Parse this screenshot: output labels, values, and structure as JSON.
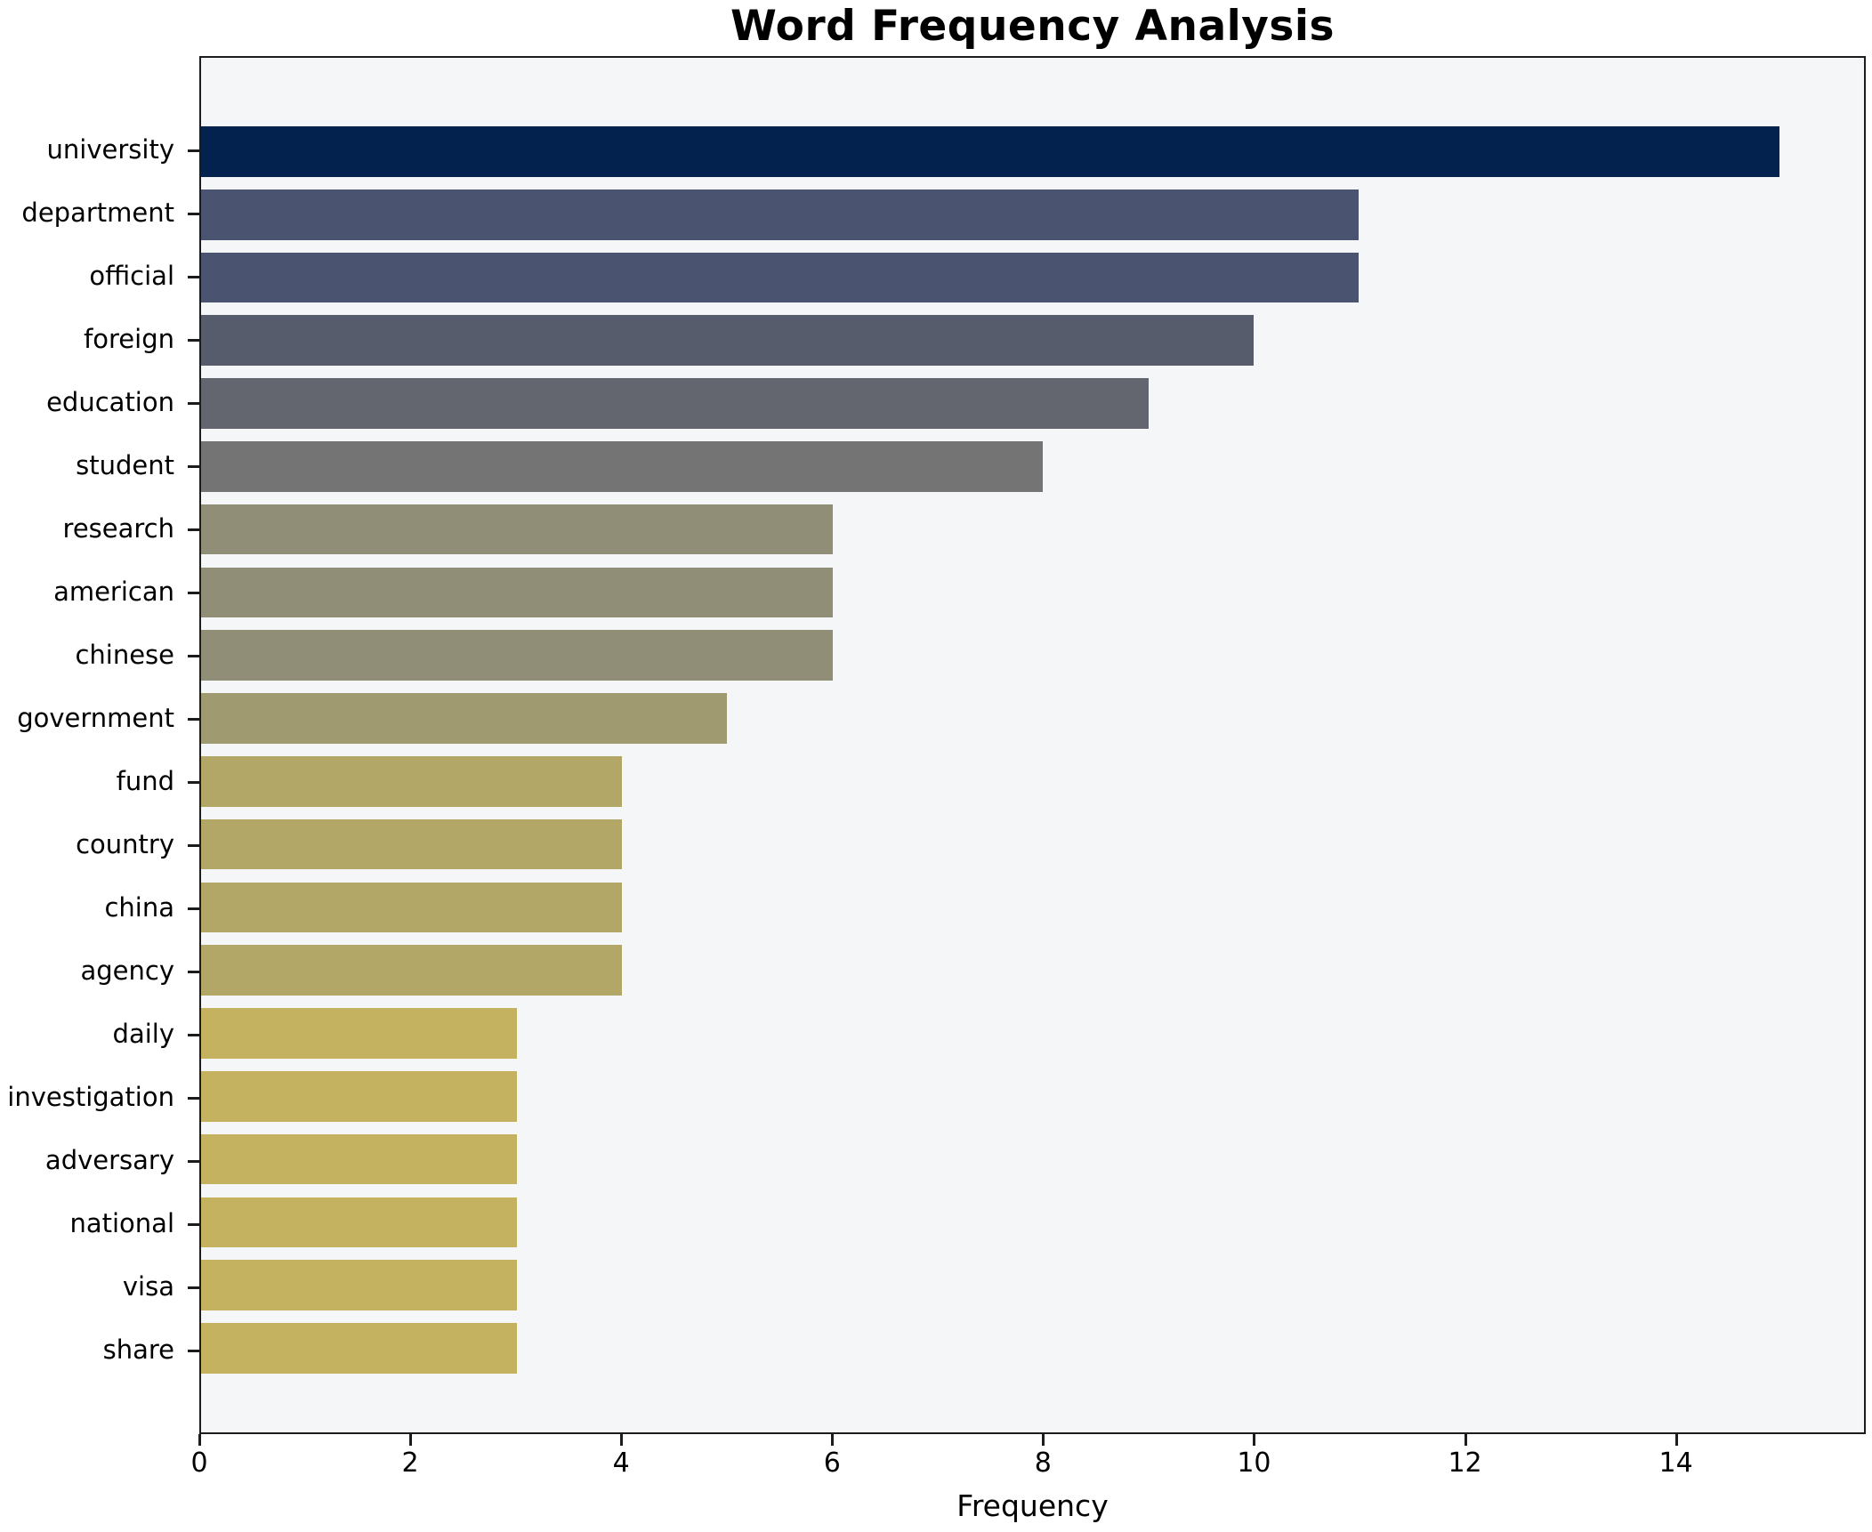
{
  "chart": {
    "title": "Word Frequency Analysis",
    "xlabel": "Frequency"
  },
  "chart_data": {
    "type": "bar",
    "orientation": "horizontal",
    "title": "Word Frequency Analysis",
    "xlabel": "Frequency",
    "ylabel": "",
    "categories": [
      "university",
      "department",
      "official",
      "foreign",
      "education",
      "student",
      "research",
      "american",
      "chinese",
      "government",
      "fund",
      "country",
      "china",
      "agency",
      "daily",
      "investigation",
      "adversary",
      "national",
      "visa",
      "share"
    ],
    "values": [
      15,
      11,
      11,
      10,
      9,
      8,
      6,
      6,
      6,
      5,
      4,
      4,
      4,
      4,
      3,
      3,
      3,
      3,
      3,
      3
    ],
    "bar_colors": [
      "#03234e",
      "#4a5370",
      "#4a5370",
      "#565c6c",
      "#63666f",
      "#737473",
      "#918e77",
      "#918e77",
      "#918e77",
      "#a09a70",
      "#b3a768",
      "#b3a768",
      "#b3a768",
      "#b3a768",
      "#c4b260",
      "#c4b260",
      "#c4b260",
      "#c4b260",
      "#c4b260",
      "#c4b260"
    ],
    "xticks": [
      0,
      2,
      4,
      6,
      8,
      10,
      12,
      14
    ],
    "xlim": [
      0,
      15.8
    ],
    "grid": false,
    "legend_position": "none",
    "plot_background": "#f5f6f7",
    "figure_background": "#ffffff",
    "spine_color": "#1c1c1c"
  }
}
